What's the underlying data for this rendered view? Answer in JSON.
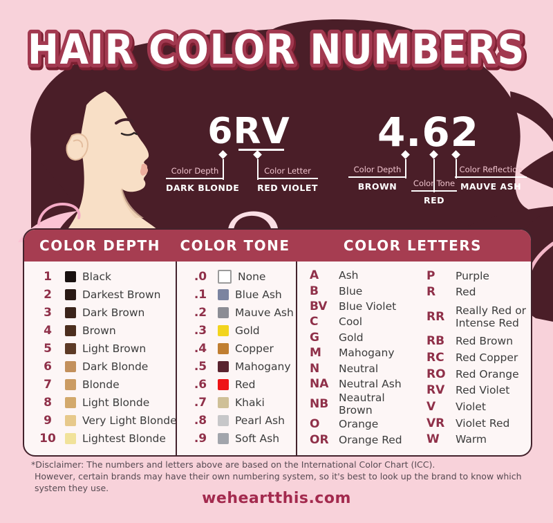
{
  "title": {
    "text": "HAIR COLOR NUMBERS"
  },
  "colors": {
    "background": "#f8d2da",
    "hair": "#4a1e28",
    "skin": "#f8dfc6",
    "shirt": "#fbc3d4",
    "header_bar": "#a63d51",
    "accent_maroon": "#8f3049",
    "table_border": "#43222c",
    "table_bg": "#fdf6f6"
  },
  "example1": {
    "code": "6RV",
    "callouts": [
      {
        "label": "Color Depth",
        "value": "DARK BLONDE"
      },
      {
        "label": "Color Letter",
        "value": "RED VIOLET"
      }
    ]
  },
  "example2": {
    "code": "4.62",
    "callouts": [
      {
        "label": "Color Depth",
        "value": "BROWN"
      },
      {
        "label": "Color Tone",
        "value": "RED"
      },
      {
        "label": "Color Reflection",
        "value": "MAUVE ASH"
      }
    ]
  },
  "table": {
    "headers": [
      "COLOR DEPTH",
      "COLOR TONE",
      "COLOR LETTERS"
    ],
    "depth_rows": [
      {
        "num": "1",
        "color": "#191110",
        "label": "Black"
      },
      {
        "num": "2",
        "color": "#2a1a15",
        "label": "Darkest Brown"
      },
      {
        "num": "3",
        "color": "#3b241b",
        "label": "Dark Brown"
      },
      {
        "num": "4",
        "color": "#4c2e1e",
        "label": "Brown"
      },
      {
        "num": "5",
        "color": "#5d3a26",
        "label": "Light Brown"
      },
      {
        "num": "6",
        "color": "#c3905c",
        "label": "Dark Blonde"
      },
      {
        "num": "7",
        "color": "#cb9b63",
        "label": "Blonde"
      },
      {
        "num": "8",
        "color": "#d3a96c",
        "label": "Light Blonde"
      },
      {
        "num": "9",
        "color": "#e7c98b",
        "label": "Very Light Blonde"
      },
      {
        "num": "10",
        "color": "#f1e29a",
        "label": "Lightest Blonde"
      }
    ],
    "tone_rows": [
      {
        "num": ".0",
        "color": "#ffffff",
        "border": "#9a9a9a",
        "label": "None"
      },
      {
        "num": ".1",
        "color": "#7b84a0",
        "label": "Blue Ash"
      },
      {
        "num": ".2",
        "color": "#8c8d95",
        "label": "Mauve Ash"
      },
      {
        "num": ".3",
        "color": "#f2d41e",
        "label": "Gold"
      },
      {
        "num": ".4",
        "color": "#c07e31",
        "label": "Copper"
      },
      {
        "num": ".5",
        "color": "#5a2430",
        "label": "Mahogany"
      },
      {
        "num": ".6",
        "color": "#ee1416",
        "label": "Red"
      },
      {
        "num": ".7",
        "color": "#cfc098",
        "label": "Khaki"
      },
      {
        "num": ".8",
        "color": "#c7c7c9",
        "label": "Pearl Ash"
      },
      {
        "num": ".9",
        "color": "#a2a5ac",
        "label": "Soft Ash"
      }
    ],
    "letters_left": [
      {
        "code": "A",
        "label": "Ash"
      },
      {
        "code": "B",
        "label": "Blue"
      },
      {
        "code": "BV",
        "label": "Blue Violet"
      },
      {
        "code": "C",
        "label": "Cool"
      },
      {
        "code": "G",
        "label": "Gold"
      },
      {
        "code": "M",
        "label": "Mahogany"
      },
      {
        "code": "N",
        "label": "Neutral"
      },
      {
        "code": "NA",
        "label": "Neutral Ash"
      },
      {
        "code": "NB",
        "label": "Neautral Brown"
      },
      {
        "code": "O",
        "label": "Orange"
      },
      {
        "code": "OR",
        "label": "Orange Red"
      }
    ],
    "letters_right": [
      {
        "code": "P",
        "label": "Purple"
      },
      {
        "code": "R",
        "label": "Red"
      },
      {
        "code": "RR",
        "label": "Really Red or Intense Red",
        "tall": true
      },
      {
        "code": "RB",
        "label": "Red Brown"
      },
      {
        "code": "RC",
        "label": "Red Copper"
      },
      {
        "code": "RO",
        "label": "Red Orange"
      },
      {
        "code": "RV",
        "label": "Red Violet"
      },
      {
        "code": "V",
        "label": "Violet"
      },
      {
        "code": "VR",
        "label": "Violet Red"
      },
      {
        "code": "W",
        "label": "Warm"
      }
    ]
  },
  "disclaimer": {
    "line1": "*Disclaimer: The numbers and letters above are based on the International Color Chart (ICC).",
    "line2": "However, certain brands may have their own numbering system, so it's best to look up the brand to know which system they use."
  },
  "footer": {
    "site": "weheartthis.com"
  }
}
